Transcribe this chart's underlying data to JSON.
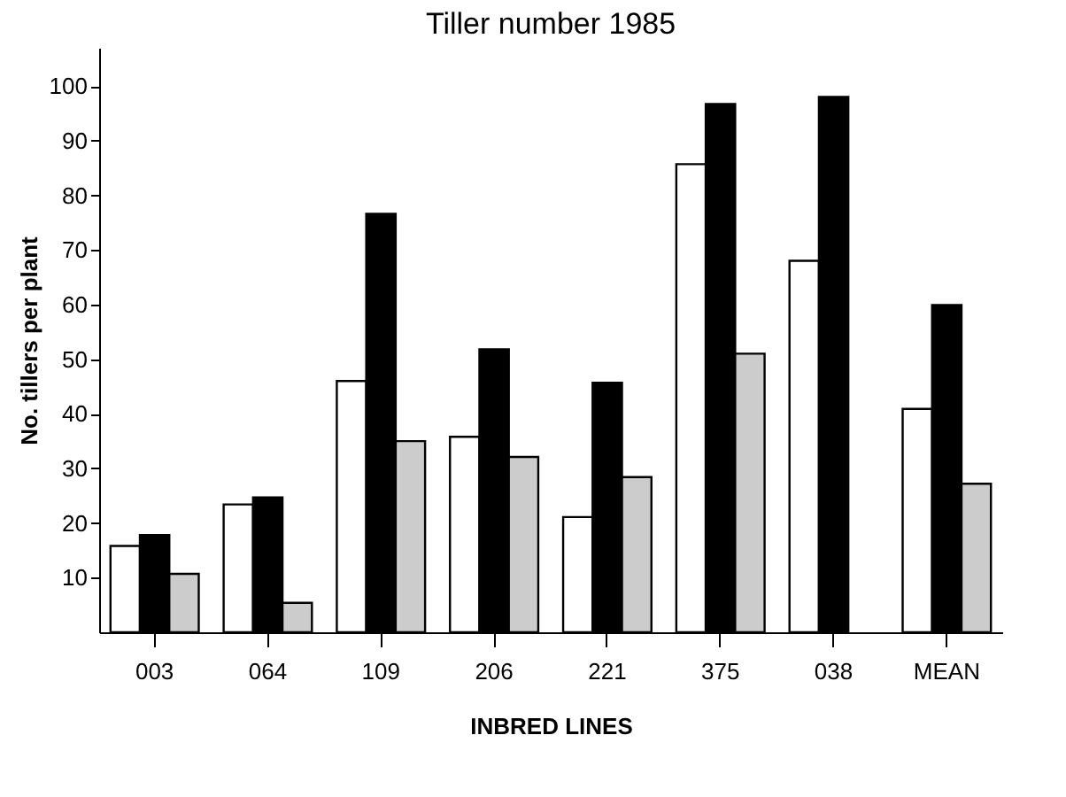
{
  "chart_data": {
    "type": "bar",
    "title": "Tiller number 1985",
    "xlabel": "INBRED LINES",
    "ylabel": "No. tillers per plant",
    "categories": [
      "003",
      "064",
      "109",
      "206",
      "221",
      "375",
      "038",
      "MEAN"
    ],
    "series": [
      {
        "color": "#ffffff",
        "values": [
          15.8,
          23.4,
          46,
          35.8,
          21.1,
          85.7,
          68,
          40.9
        ]
      },
      {
        "color": "#000000",
        "values": [
          17.8,
          24.7,
          76.6,
          51.8,
          45.7,
          96.7,
          98,
          59.9
        ]
      },
      {
        "color": "#cccccc",
        "values": [
          10.7,
          5.4,
          35,
          32.1,
          28.4,
          51,
          null,
          27.2
        ]
      }
    ],
    "ylim": [
      0,
      107
    ],
    "yticks": [
      10,
      20,
      30,
      40,
      50,
      60,
      70,
      80,
      90,
      100
    ],
    "grid": false
  }
}
